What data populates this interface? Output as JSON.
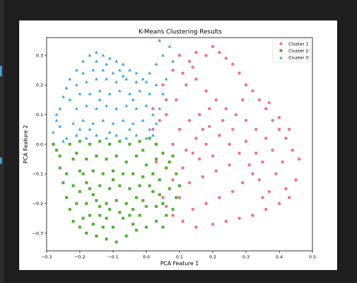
{
  "chart_data": {
    "type": "scatter",
    "title": "K-Means Clustering Results",
    "xlabel": "PCA Feature 1",
    "ylabel": "PCA Feature 2",
    "xlim": [
      -0.3,
      0.5
    ],
    "ylim": [
      -0.36,
      0.36
    ],
    "xticks": [
      "−0.3",
      "−0.2",
      "−0.1",
      "0.0",
      "0.1",
      "0.2",
      "0.3",
      "0.4",
      "0.5"
    ],
    "xtick_values": [
      -0.3,
      -0.2,
      -0.1,
      0.0,
      0.1,
      0.2,
      0.3,
      0.4,
      0.5
    ],
    "yticks": [
      "−0.3",
      "−0.2",
      "−0.1",
      "0.0",
      "0.1",
      "0.2",
      "0.3"
    ],
    "ytick_values": [
      -0.3,
      -0.2,
      -0.1,
      0.0,
      0.1,
      0.2,
      0.3
    ],
    "grid": false,
    "legend_position": "top-right",
    "series": [
      {
        "name": "Cluster 1",
        "color": "#f77189",
        "marker": "circle",
        "points": [
          [
            0.02,
            0.12
          ],
          [
            0.05,
            0.2
          ],
          [
            0.08,
            0.25
          ],
          [
            0.1,
            0.3
          ],
          [
            0.13,
            0.28
          ],
          [
            0.15,
            0.31
          ],
          [
            0.18,
            0.3
          ],
          [
            0.2,
            0.33
          ],
          [
            0.22,
            0.31
          ],
          [
            0.24,
            0.29
          ],
          [
            0.26,
            0.27
          ],
          [
            0.28,
            0.24
          ],
          [
            0.3,
            0.2
          ],
          [
            0.32,
            0.18
          ],
          [
            0.34,
            0.15
          ],
          [
            0.36,
            0.12
          ],
          [
            0.38,
            0.08
          ],
          [
            0.4,
            0.05
          ],
          [
            0.42,
            0.02
          ],
          [
            0.44,
            -0.02
          ],
          [
            0.46,
            -0.05
          ],
          [
            0.45,
            -0.12
          ],
          [
            0.42,
            -0.15
          ],
          [
            0.4,
            -0.2
          ],
          [
            0.36,
            -0.22
          ],
          [
            0.32,
            -0.24
          ],
          [
            0.28,
            -0.25
          ],
          [
            0.24,
            -0.26
          ],
          [
            0.2,
            -0.27
          ],
          [
            0.15,
            -0.28
          ],
          [
            0.11,
            -0.26
          ],
          [
            0.08,
            -0.24
          ],
          [
            0.06,
            -0.21
          ],
          [
            0.05,
            -0.18
          ],
          [
            0.04,
            -0.12
          ],
          [
            0.03,
            -0.06
          ],
          [
            0.03,
            0.0
          ],
          [
            0.02,
            0.05
          ],
          [
            0.06,
            0.1
          ],
          [
            0.09,
            0.15
          ],
          [
            0.12,
            0.2
          ],
          [
            0.15,
            0.22
          ],
          [
            0.18,
            0.18
          ],
          [
            0.21,
            0.15
          ],
          [
            0.24,
            0.12
          ],
          [
            0.27,
            0.1
          ],
          [
            0.3,
            0.08
          ],
          [
            0.33,
            0.05
          ],
          [
            0.36,
            0.02
          ],
          [
            0.38,
            -0.02
          ],
          [
            0.35,
            -0.06
          ],
          [
            0.32,
            -0.1
          ],
          [
            0.29,
            -0.13
          ],
          [
            0.26,
            -0.16
          ],
          [
            0.22,
            -0.18
          ],
          [
            0.18,
            -0.2
          ],
          [
            0.14,
            -0.22
          ],
          [
            0.1,
            -0.18
          ],
          [
            0.08,
            -0.12
          ],
          [
            0.07,
            -0.06
          ],
          [
            0.08,
            0.0
          ],
          [
            0.1,
            0.05
          ],
          [
            0.13,
            0.08
          ],
          [
            0.16,
            0.1
          ],
          [
            0.19,
            0.06
          ],
          [
            0.22,
            0.03
          ],
          [
            0.25,
            0.0
          ],
          [
            0.28,
            -0.03
          ],
          [
            0.25,
            -0.07
          ],
          [
            0.21,
            -0.09
          ],
          [
            0.17,
            -0.11
          ],
          [
            0.13,
            -0.13
          ],
          [
            0.11,
            -0.08
          ],
          [
            0.12,
            -0.02
          ],
          [
            0.15,
            0.02
          ],
          [
            0.18,
            0.0
          ],
          [
            0.2,
            -0.04
          ],
          [
            0.16,
            -0.05
          ],
          [
            0.14,
            -0.03
          ],
          [
            0.17,
            0.05
          ],
          [
            0.19,
            0.12
          ],
          [
            0.23,
            0.08
          ],
          [
            0.26,
            0.05
          ],
          [
            0.3,
            0.01
          ],
          [
            0.33,
            -0.03
          ],
          [
            0.31,
            -0.07
          ],
          [
            0.34,
            -0.12
          ],
          [
            0.37,
            -0.16
          ],
          [
            0.39,
            -0.1
          ],
          [
            0.41,
            -0.06
          ],
          [
            0.43,
            0.05
          ],
          [
            0.4,
            0.09
          ],
          [
            0.37,
            0.14
          ],
          [
            0.29,
            0.15
          ],
          [
            0.11,
            0.24
          ],
          [
            0.14,
            0.26
          ],
          [
            0.06,
            0.15
          ],
          [
            0.04,
            0.08
          ],
          [
            0.43,
            -0.18
          ],
          [
            0.35,
            -0.18
          ]
        ]
      },
      {
        "name": "Cluster 2",
        "color": "#50b131",
        "marker": "square",
        "points": [
          [
            -0.27,
            -0.02
          ],
          [
            -0.26,
            -0.08
          ],
          [
            -0.25,
            -0.13
          ],
          [
            -0.24,
            -0.18
          ],
          [
            -0.23,
            -0.22
          ],
          [
            -0.22,
            -0.26
          ],
          [
            -0.2,
            -0.28
          ],
          [
            -0.18,
            -0.3
          ],
          [
            -0.15,
            -0.31
          ],
          [
            -0.12,
            -0.32
          ],
          [
            -0.09,
            -0.33
          ],
          [
            -0.06,
            -0.31
          ],
          [
            -0.03,
            -0.29
          ],
          [
            0.0,
            -0.28
          ],
          [
            0.03,
            -0.26
          ],
          [
            0.06,
            -0.24
          ],
          [
            0.08,
            -0.22
          ],
          [
            0.09,
            -0.18
          ],
          [
            0.1,
            -0.14
          ],
          [
            0.09,
            -0.1
          ],
          [
            0.07,
            -0.06
          ],
          [
            0.05,
            -0.03
          ],
          [
            0.03,
            0.0
          ],
          [
            0.01,
            0.02
          ],
          [
            -0.02,
            0.01
          ],
          [
            -0.05,
            0.0
          ],
          [
            -0.08,
            0.01
          ],
          [
            -0.11,
            0.0
          ],
          [
            -0.14,
            0.01
          ],
          [
            -0.17,
            0.0
          ],
          [
            -0.2,
            0.01
          ],
          [
            -0.23,
            0.0
          ],
          [
            -0.22,
            -0.05
          ],
          [
            -0.2,
            -0.09
          ],
          [
            -0.18,
            -0.13
          ],
          [
            -0.16,
            -0.17
          ],
          [
            -0.14,
            -0.21
          ],
          [
            -0.12,
            -0.25
          ],
          [
            -0.1,
            -0.28
          ],
          [
            -0.07,
            -0.25
          ],
          [
            -0.04,
            -0.22
          ],
          [
            -0.01,
            -0.19
          ],
          [
            0.02,
            -0.16
          ],
          [
            0.04,
            -0.12
          ],
          [
            0.06,
            -0.08
          ],
          [
            0.03,
            -0.05
          ],
          [
            0.0,
            -0.07
          ],
          [
            -0.03,
            -0.04
          ],
          [
            -0.06,
            -0.06
          ],
          [
            -0.09,
            -0.04
          ],
          [
            -0.12,
            -0.05
          ],
          [
            -0.15,
            -0.04
          ],
          [
            -0.18,
            -0.05
          ],
          [
            -0.21,
            -0.03
          ],
          [
            -0.19,
            -0.1
          ],
          [
            -0.16,
            -0.09
          ],
          [
            -0.13,
            -0.1
          ],
          [
            -0.1,
            -0.09
          ],
          [
            -0.07,
            -0.1
          ],
          [
            -0.04,
            -0.1
          ],
          [
            -0.01,
            -0.11
          ],
          [
            0.02,
            -0.1
          ],
          [
            0.04,
            -0.17
          ],
          [
            0.01,
            -0.14
          ],
          [
            -0.02,
            -0.14
          ],
          [
            -0.05,
            -0.15
          ],
          [
            -0.08,
            -0.14
          ],
          [
            -0.11,
            -0.15
          ],
          [
            -0.14,
            -0.14
          ],
          [
            -0.17,
            -0.15
          ],
          [
            -0.2,
            -0.16
          ],
          [
            -0.21,
            -0.2
          ],
          [
            -0.18,
            -0.2
          ],
          [
            -0.15,
            -0.19
          ],
          [
            -0.12,
            -0.2
          ],
          [
            -0.09,
            -0.19
          ],
          [
            -0.06,
            -0.2
          ],
          [
            -0.03,
            -0.18
          ],
          [
            0.0,
            -0.21
          ],
          [
            0.03,
            -0.21
          ],
          [
            0.05,
            -0.2
          ],
          [
            -0.02,
            -0.24
          ],
          [
            -0.05,
            -0.24
          ],
          [
            -0.08,
            -0.23
          ],
          [
            -0.11,
            -0.22
          ],
          [
            -0.14,
            -0.24
          ],
          [
            -0.17,
            -0.24
          ],
          [
            -0.19,
            -0.25
          ],
          [
            -0.16,
            -0.27
          ],
          [
            -0.13,
            -0.28
          ],
          [
            -0.26,
            -0.04
          ],
          [
            -0.24,
            -0.1
          ],
          [
            -0.28,
            0.0
          ],
          [
            0.07,
            -0.15
          ],
          [
            0.08,
            -0.04
          ],
          [
            -0.01,
            -0.02
          ],
          [
            -0.22,
            -0.14
          ],
          [
            -0.1,
            -0.12
          ],
          [
            -0.04,
            -0.27
          ],
          [
            0.05,
            -0.28
          ]
        ]
      },
      {
        "name": "Cluster 0",
        "color": "#3ba3ec",
        "marker": "triangle",
        "points": [
          [
            -0.28,
            0.04
          ],
          [
            -0.27,
            0.08
          ],
          [
            -0.26,
            0.12
          ],
          [
            -0.25,
            0.16
          ],
          [
            -0.24,
            0.19
          ],
          [
            -0.23,
            0.22
          ],
          [
            -0.21,
            0.25
          ],
          [
            -0.19,
            0.28
          ],
          [
            -0.17,
            0.3
          ],
          [
            -0.15,
            0.31
          ],
          [
            -0.13,
            0.3
          ],
          [
            -0.11,
            0.29
          ],
          [
            -0.09,
            0.28
          ],
          [
            -0.07,
            0.27
          ],
          [
            -0.05,
            0.25
          ],
          [
            -0.03,
            0.24
          ],
          [
            -0.01,
            0.22
          ],
          [
            0.01,
            0.24
          ],
          [
            0.03,
            0.27
          ],
          [
            0.05,
            0.3
          ],
          [
            0.07,
            0.33
          ],
          [
            0.08,
            0.28
          ],
          [
            0.06,
            0.22
          ],
          [
            0.05,
            0.17
          ],
          [
            0.04,
            0.12
          ],
          [
            0.03,
            0.07
          ],
          [
            0.02,
            0.03
          ],
          [
            0.0,
            0.02
          ],
          [
            -0.03,
            0.03
          ],
          [
            -0.06,
            0.02
          ],
          [
            -0.09,
            0.03
          ],
          [
            -0.12,
            0.02
          ],
          [
            -0.15,
            0.03
          ],
          [
            -0.18,
            0.02
          ],
          [
            -0.21,
            0.03
          ],
          [
            -0.24,
            0.02
          ],
          [
            -0.22,
            0.07
          ],
          [
            -0.19,
            0.08
          ],
          [
            -0.16,
            0.07
          ],
          [
            -0.13,
            0.08
          ],
          [
            -0.1,
            0.07
          ],
          [
            -0.07,
            0.08
          ],
          [
            -0.04,
            0.07
          ],
          [
            -0.01,
            0.08
          ],
          [
            0.02,
            0.1
          ],
          [
            0.0,
            0.13
          ],
          [
            -0.03,
            0.12
          ],
          [
            -0.06,
            0.13
          ],
          [
            -0.09,
            0.12
          ],
          [
            -0.12,
            0.13
          ],
          [
            -0.15,
            0.12
          ],
          [
            -0.18,
            0.13
          ],
          [
            -0.21,
            0.12
          ],
          [
            -0.23,
            0.15
          ],
          [
            -0.2,
            0.17
          ],
          [
            -0.17,
            0.17
          ],
          [
            -0.14,
            0.18
          ],
          [
            -0.11,
            0.17
          ],
          [
            -0.08,
            0.18
          ],
          [
            -0.05,
            0.17
          ],
          [
            -0.02,
            0.18
          ],
          [
            0.01,
            0.17
          ],
          [
            0.03,
            0.2
          ],
          [
            0.0,
            0.21
          ],
          [
            -0.03,
            0.21
          ],
          [
            -0.06,
            0.22
          ],
          [
            -0.09,
            0.21
          ],
          [
            -0.12,
            0.22
          ],
          [
            -0.15,
            0.22
          ],
          [
            -0.18,
            0.21
          ],
          [
            -0.21,
            0.2
          ],
          [
            -0.19,
            0.24
          ],
          [
            -0.16,
            0.25
          ],
          [
            -0.13,
            0.25
          ],
          [
            -0.1,
            0.24
          ],
          [
            -0.07,
            0.23
          ],
          [
            -0.15,
            0.28
          ],
          [
            -0.12,
            0.27
          ],
          [
            -0.08,
            0.25
          ],
          [
            0.04,
            0.35
          ],
          [
            -0.27,
            0.1
          ],
          [
            -0.26,
            0.06
          ],
          [
            -0.25,
            0.01
          ],
          [
            -0.11,
            0.04
          ],
          [
            -0.17,
            0.05
          ],
          [
            -0.05,
            0.05
          ],
          [
            0.01,
            0.05
          ],
          [
            -0.2,
            0.05
          ],
          [
            -0.14,
            0.15
          ],
          [
            -0.04,
            0.15
          ]
        ]
      }
    ]
  }
}
